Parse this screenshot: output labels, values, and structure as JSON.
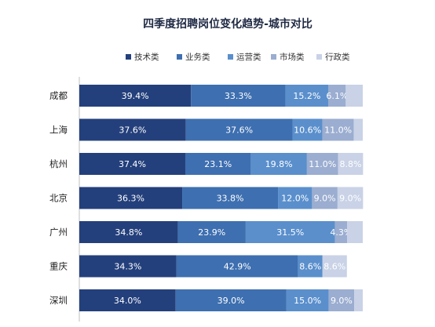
{
  "chart_data": {
    "type": "bar",
    "orientation": "horizontal",
    "stacked": "percent",
    "title": "四季度招聘岗位变化趋势-城市对比",
    "legend_position": "top-right",
    "grid": false,
    "xlim": [
      0,
      100
    ],
    "categories": [
      "成都",
      "上海",
      "杭州",
      "北京",
      "广州",
      "重庆",
      "深圳"
    ],
    "series": [
      {
        "name": "技术类",
        "color": "#24407c",
        "label_color": "#ffffff",
        "values": [
          39.4,
          37.6,
          37.4,
          36.3,
          34.8,
          34.3,
          34.0
        ]
      },
      {
        "name": "业务类",
        "color": "#3e6fb0",
        "label_color": "#ffffff",
        "values": [
          33.3,
          37.6,
          23.1,
          33.8,
          23.9,
          42.9,
          39.0
        ]
      },
      {
        "name": "运营类",
        "color": "#5a8fcc",
        "label_color": "#ffffff",
        "values": [
          15.2,
          10.6,
          19.8,
          12.0,
          31.5,
          8.6,
          15.0
        ]
      },
      {
        "name": "市场类",
        "color": "#9badd0",
        "label_color": "#ffffff",
        "values": [
          6.1,
          11.0,
          11.0,
          9.0,
          4.3,
          0,
          9.0
        ]
      },
      {
        "name": "行政类",
        "color": "#c9d2e6",
        "label_color": "#ffffff",
        "values": [
          6.0,
          3.2,
          8.8,
          9.0,
          5.5,
          8.6,
          3.0
        ]
      }
    ],
    "data_labels": [
      [
        "39.4%",
        "33.3%",
        "15.2%",
        "6.1%",
        ""
      ],
      [
        "37.6%",
        "37.6%",
        "10.6%",
        "11.0%",
        ""
      ],
      [
        "37.4%",
        "23.1%",
        "19.8%",
        "11.0%",
        "8.8%"
      ],
      [
        "36.3%",
        "33.8%",
        "12.0%",
        "9.0%",
        "9.0%"
      ],
      [
        "34.8%",
        "23.9%",
        "31.5%",
        "4.3%",
        ""
      ],
      [
        "34.3%",
        "42.9%",
        "8.6%",
        "",
        "8.6%"
      ],
      [
        "34.0%",
        "39.0%",
        "15.0%",
        "9.0%",
        ""
      ]
    ]
  }
}
